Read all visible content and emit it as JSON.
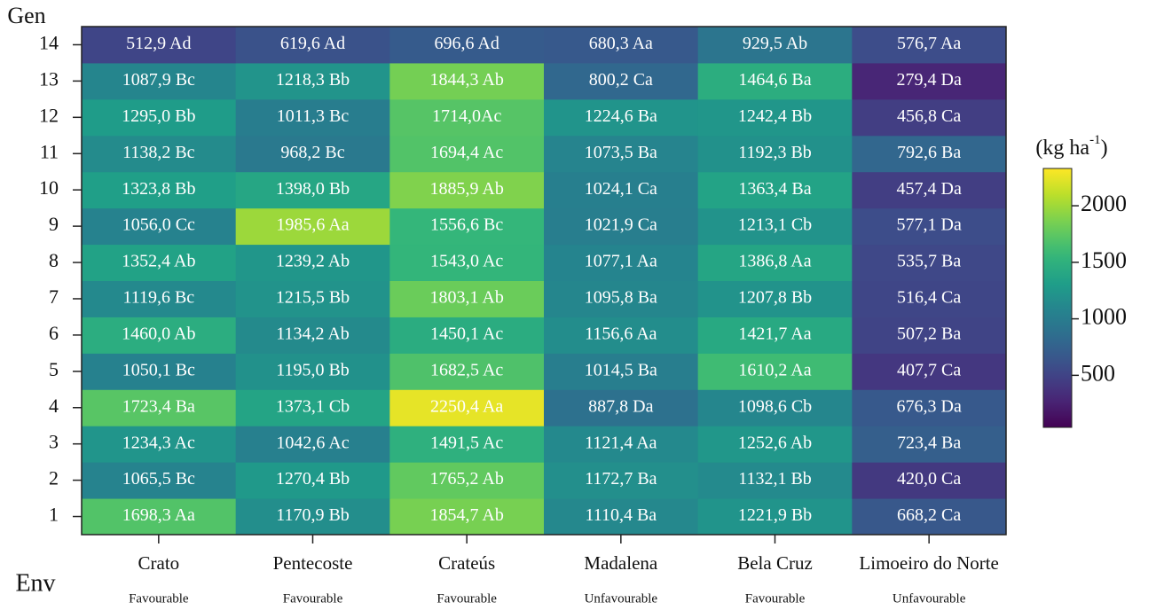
{
  "chart_data": {
    "type": "heatmap",
    "x_label": "Env",
    "y_label": "Gen",
    "categories": [
      "Crato",
      "Pentecoste",
      "Crateús",
      "Madalena",
      "Bela Cruz",
      "Limoeiro do Norte"
    ],
    "category_notes": [
      "Favourable",
      "Favourable",
      "Favourable",
      "Unfavourable",
      "Favourable",
      "Unfavourable"
    ],
    "y_categories": [
      1,
      2,
      3,
      4,
      5,
      6,
      7,
      8,
      9,
      10,
      11,
      12,
      13,
      14
    ],
    "values": [
      [
        1698.3,
        1170.9,
        1854.7,
        1110.4,
        1221.9,
        668.2
      ],
      [
        1065.5,
        1270.4,
        1765.2,
        1172.7,
        1132.1,
        420.0
      ],
      [
        1234.3,
        1042.6,
        1491.5,
        1121.4,
        1252.6,
        723.4
      ],
      [
        1723.4,
        1373.1,
        2250.4,
        887.8,
        1098.6,
        676.3
      ],
      [
        1050.1,
        1195.0,
        1682.5,
        1014.5,
        1610.2,
        407.7
      ],
      [
        1460.0,
        1134.2,
        1450.1,
        1156.6,
        1421.7,
        507.2
      ],
      [
        1119.6,
        1215.5,
        1803.1,
        1095.8,
        1207.8,
        516.4
      ],
      [
        1352.4,
        1239.2,
        1543.0,
        1077.1,
        1386.8,
        535.7
      ],
      [
        1056.0,
        1985.6,
        1556.6,
        1021.9,
        1213.1,
        577.1
      ],
      [
        1323.8,
        1398.0,
        1885.9,
        1024.1,
        1363.4,
        457.4
      ],
      [
        1138.2,
        968.2,
        1694.4,
        1073.5,
        1192.3,
        792.6
      ],
      [
        1295.0,
        1011.3,
        1714.0,
        1224.6,
        1242.4,
        456.8
      ],
      [
        1087.9,
        1218.3,
        1844.3,
        800.2,
        1464.6,
        279.4
      ],
      [
        512.9,
        619.6,
        696.6,
        680.3,
        929.5,
        576.7
      ]
    ],
    "value_labels": [
      [
        "1698,3 Aa",
        "1170,9 Bb",
        "1854,7 Ab",
        "1110,4 Ba",
        "1221,9 Bb",
        "668,2 Ca"
      ],
      [
        "1065,5 Bc",
        "1270,4 Bb",
        "1765,2 Ab",
        "1172,7 Ba",
        "1132,1 Bb",
        "420,0 Ca"
      ],
      [
        "1234,3 Ac",
        "1042,6 Ac",
        "1491,5 Ac",
        "1121,4 Aa",
        "1252,6 Ab",
        "723,4 Ba"
      ],
      [
        "1723,4 Ba",
        "1373,1 Cb",
        "2250,4 Aa",
        "887,8 Da",
        "1098,6 Cb",
        "676,3 Da"
      ],
      [
        "1050,1 Bc",
        "1195,0 Bb",
        "1682,5 Ac",
        "1014,5 Ba",
        "1610,2 Aa",
        "407,7 Ca"
      ],
      [
        "1460,0 Ab",
        "1134,2 Ab",
        "1450,1 Ac",
        "1156,6 Aa",
        "1421,7 Aa",
        "507,2 Ba"
      ],
      [
        "1119,6 Bc",
        "1215,5 Bb",
        "1803,1 Ab",
        "1095,8 Ba",
        "1207,8 Bb",
        "516,4 Ca"
      ],
      [
        "1352,4 Ab",
        "1239,2 Ab",
        "1543,0 Ac",
        "1077,1 Aa",
        "1386,8 Aa",
        "535,7 Ba"
      ],
      [
        "1056,0 Cc",
        "1985,6 Aa",
        "1556,6 Bc",
        "1021,9 Ca",
        "1213,1 Cb",
        "577,1 Da"
      ],
      [
        "1323,8 Bb",
        "1398,0 Bb",
        "1885,9 Ab",
        "1024,1 Ca",
        "1363,4 Ba",
        "457,4 Da"
      ],
      [
        "1138,2 Bc",
        "968,2 Bc",
        "1694,4 Ac",
        "1073,5 Ba",
        "1192,3 Bb",
        "792,6 Ba"
      ],
      [
        "1295,0 Bb",
        "1011,3 Bc",
        "1714,0Ac",
        "1224,6 Ba",
        "1242,4 Bb",
        "456,8 Ca"
      ],
      [
        "1087,9 Bc",
        "1218,3 Bb",
        "1844,3 Ab",
        "800,2 Ca",
        "1464,6 Ba",
        "279,4 Da"
      ],
      [
        "512,9 Ad",
        "619,6 Ad",
        "696,6 Ad",
        "680,3 Aa",
        "929,5 Ab",
        "576,7 Aa"
      ]
    ],
    "colormap": "viridis",
    "clim": [
      40,
      2330
    ],
    "cticks": [
      500,
      1000,
      1500,
      2000
    ],
    "colorbar_label": [
      "(kg ha",
      "-1",
      ")"
    ]
  }
}
